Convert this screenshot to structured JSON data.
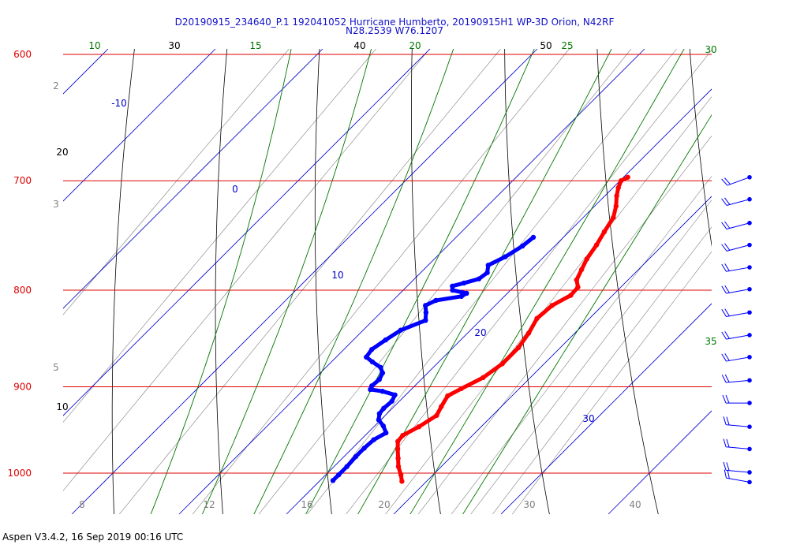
{
  "colors": {
    "isobar": "#dd0000",
    "isotherm": "#0000cc",
    "dry_adiabat": "#000000",
    "moist_adiabat": "#007700",
    "mixing_ratio": "#808080",
    "temperature": "#ff0000",
    "dewpoint": "#0000ff",
    "wind_barb": "#0000ff"
  },
  "chart_data": {
    "type": "skew-t",
    "title": "D20190915_234640_P.1 192041052 Hurricane Humberto, 20190915H1 WP-3D Orion, N42RF",
    "subtitle": "N28.2539 W76.1207",
    "footer": "Aspen V3.4.2, 16 Sep 2019  00:16 UTC",
    "pressure_range_hpa": [
      1050,
      600
    ],
    "isobars": [
      {
        "p": 600,
        "label": "600"
      },
      {
        "p": 700,
        "label": "700"
      },
      {
        "p": 800,
        "label": "800"
      },
      {
        "p": 900,
        "label": "900"
      },
      {
        "p": 1000,
        "label": "1000"
      }
    ],
    "isotherms": [
      {
        "t": -10,
        "label": "-10"
      },
      {
        "t": 0,
        "label": "0"
      },
      {
        "t": 10,
        "label": "10"
      },
      {
        "t": 20,
        "label": "20"
      },
      {
        "t": 30,
        "label": "30"
      }
    ],
    "dry_adiabats": [
      {
        "theta": 10,
        "label": "10"
      },
      {
        "theta": 20,
        "label": "20"
      },
      {
        "theta": 30,
        "label": "30"
      },
      {
        "theta": 40,
        "label": "40"
      },
      {
        "theta": 50,
        "label": "50"
      }
    ],
    "moist_adiabats": [
      {
        "theta_w": 10,
        "label": "10"
      },
      {
        "theta_w": 15,
        "label": "15"
      },
      {
        "theta_w": 20,
        "label": "20"
      },
      {
        "theta_w": 25,
        "label": "25"
      },
      {
        "theta_w": 30,
        "label": "30"
      },
      {
        "theta_w": 35,
        "label": "35"
      }
    ],
    "mixing_ratio_labels": [
      {
        "value": "2"
      },
      {
        "value": "3"
      },
      {
        "value": "5"
      },
      {
        "value": "8"
      },
      {
        "value": "12"
      },
      {
        "value": "16"
      },
      {
        "value": "20"
      },
      {
        "value": "30"
      },
      {
        "value": "40"
      }
    ],
    "temperature_profile": [
      {
        "p": 1010,
        "t": 27.7
      },
      {
        "p": 1002,
        "t": 27.0
      },
      {
        "p": 992,
        "t": 26.0
      },
      {
        "p": 982,
        "t": 25.2
      },
      {
        "p": 971,
        "t": 24.3
      },
      {
        "p": 962,
        "t": 23.6
      },
      {
        "p": 955,
        "t": 23.5
      },
      {
        "p": 945,
        "t": 24.2
      },
      {
        "p": 932,
        "t": 24.8
      },
      {
        "p": 922,
        "t": 24.4
      },
      {
        "p": 910,
        "t": 24.0
      },
      {
        "p": 902,
        "t": 24.6
      },
      {
        "p": 890,
        "t": 25.6
      },
      {
        "p": 875,
        "t": 26.1
      },
      {
        "p": 858,
        "t": 26.1
      },
      {
        "p": 843,
        "t": 25.7
      },
      {
        "p": 828,
        "t": 25.1
      },
      {
        "p": 815,
        "t": 25.3
      },
      {
        "p": 805,
        "t": 26.1
      },
      {
        "p": 797,
        "t": 26.0
      },
      {
        "p": 790,
        "t": 25.2
      },
      {
        "p": 780,
        "t": 24.7
      },
      {
        "p": 770,
        "t": 24.2
      },
      {
        "p": 757,
        "t": 23.8
      },
      {
        "p": 745,
        "t": 23.3
      },
      {
        "p": 732,
        "t": 22.8
      },
      {
        "p": 722,
        "t": 22.0
      },
      {
        "p": 713,
        "t": 21.1
      },
      {
        "p": 706,
        "t": 20.5
      },
      {
        "p": 700,
        "t": 20.1
      },
      {
        "p": 697,
        "t": 20.4
      }
    ],
    "dewpoint_profile": [
      {
        "p": 1009,
        "t": 21.2
      },
      {
        "p": 1002,
        "t": 21.2
      },
      {
        "p": 992,
        "t": 21.2
      },
      {
        "p": 980,
        "t": 21.1
      },
      {
        "p": 970,
        "t": 21.1
      },
      {
        "p": 960,
        "t": 21.2
      },
      {
        "p": 952,
        "t": 21.7
      },
      {
        "p": 944,
        "t": 20.8
      },
      {
        "p": 937,
        "t": 19.8
      },
      {
        "p": 930,
        "t": 19.3
      },
      {
        "p": 924,
        "t": 19.2
      },
      {
        "p": 916,
        "t": 19.3
      },
      {
        "p": 909,
        "t": 19.0
      },
      {
        "p": 905,
        "t": 17.5
      },
      {
        "p": 903,
        "t": 16.2
      },
      {
        "p": 899,
        "t": 16.0
      },
      {
        "p": 892,
        "t": 16.1
      },
      {
        "p": 885,
        "t": 15.8
      },
      {
        "p": 879,
        "t": 15.1
      },
      {
        "p": 873,
        "t": 13.8
      },
      {
        "p": 868,
        "t": 12.8
      },
      {
        "p": 860,
        "t": 12.6
      },
      {
        "p": 850,
        "t": 13.0
      },
      {
        "p": 840,
        "t": 13.5
      },
      {
        "p": 830,
        "t": 14.9
      },
      {
        "p": 822,
        "t": 14.2
      },
      {
        "p": 815,
        "t": 13.5
      },
      {
        "p": 810,
        "t": 14.0
      },
      {
        "p": 806,
        "t": 16.0
      },
      {
        "p": 803,
        "t": 16.2
      },
      {
        "p": 800,
        "t": 14.6
      },
      {
        "p": 796,
        "t": 14.2
      },
      {
        "p": 793,
        "t": 15.0
      },
      {
        "p": 789,
        "t": 16.0
      },
      {
        "p": 783,
        "t": 16.2
      },
      {
        "p": 776,
        "t": 15.6
      },
      {
        "p": 768,
        "t": 16.4
      },
      {
        "p": 758,
        "t": 17.0
      },
      {
        "p": 750,
        "t": 17.2
      }
    ],
    "wind_barbs": [
      {
        "p": 697,
        "speed_kt": 20,
        "dir_deg": 70
      },
      {
        "p": 716,
        "speed_kt": 20,
        "dir_deg": 75
      },
      {
        "p": 737,
        "speed_kt": 20,
        "dir_deg": 75
      },
      {
        "p": 757,
        "speed_kt": 20,
        "dir_deg": 75
      },
      {
        "p": 778,
        "speed_kt": 20,
        "dir_deg": 80
      },
      {
        "p": 799,
        "speed_kt": 20,
        "dir_deg": 80
      },
      {
        "p": 822,
        "speed_kt": 20,
        "dir_deg": 80
      },
      {
        "p": 845,
        "speed_kt": 20,
        "dir_deg": 80
      },
      {
        "p": 868,
        "speed_kt": 20,
        "dir_deg": 80
      },
      {
        "p": 893,
        "speed_kt": 20,
        "dir_deg": 85
      },
      {
        "p": 918,
        "speed_kt": 20,
        "dir_deg": 90
      },
      {
        "p": 945,
        "speed_kt": 20,
        "dir_deg": 95
      },
      {
        "p": 971,
        "speed_kt": 20,
        "dir_deg": 95
      },
      {
        "p": 999,
        "speed_kt": 20,
        "dir_deg": 95
      },
      {
        "p": 1011,
        "speed_kt": 20,
        "dir_deg": 100
      }
    ],
    "grid": true,
    "legend": "none"
  }
}
